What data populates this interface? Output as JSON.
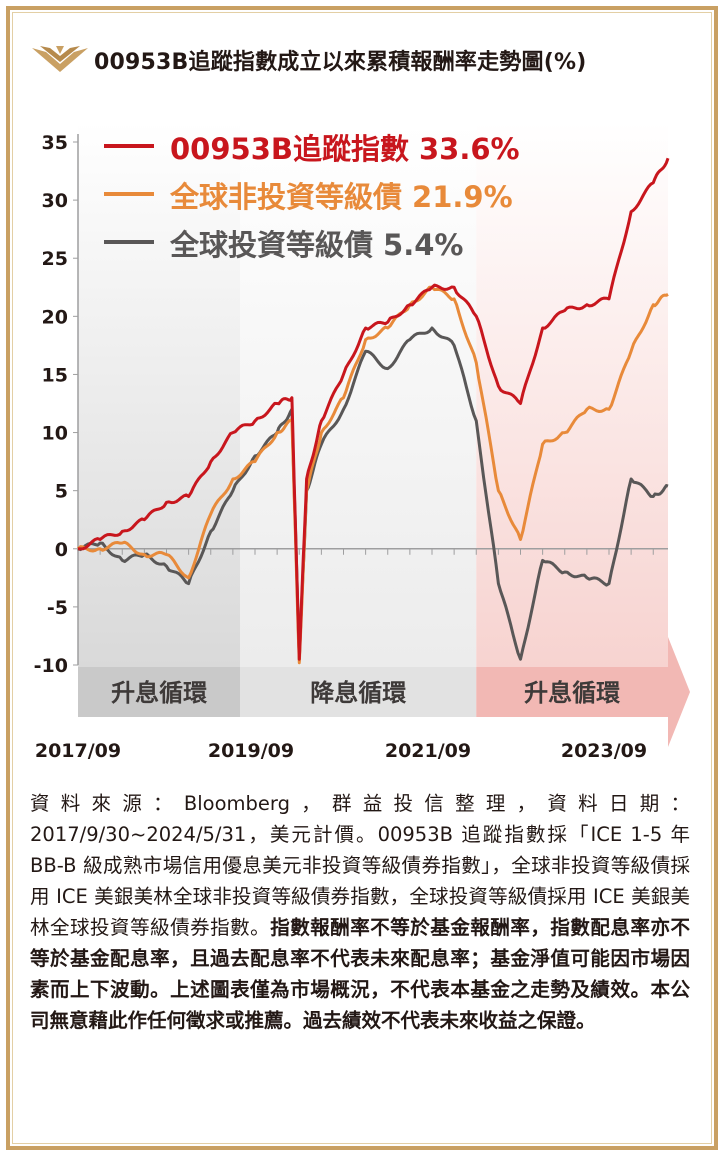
{
  "title": "00953B追蹤指數成立以來累積報酬率走勢圖(%)",
  "colors": {
    "series1": "#c8161d",
    "series2": "#e88a3a",
    "series3": "#595757",
    "gold": "#c9a063"
  },
  "chart_data": {
    "type": "line",
    "ylim": [
      -10,
      35
    ],
    "yticks": [
      "35",
      "30",
      "25",
      "20",
      "15",
      "10",
      "5",
      "0",
      "-5",
      "-10"
    ],
    "xticks": [
      "2017/09",
      "2019/09",
      "2021/09",
      "2023/09"
    ],
    "phases": [
      {
        "label": "升息循環",
        "start": "2017/09",
        "end": "2019/07"
      },
      {
        "label": "降息循環",
        "start": "2019/07",
        "end": "2022/03"
      },
      {
        "label": "升息循環",
        "start": "2022/03",
        "end": "2024/05"
      }
    ],
    "x": [
      "2017/09",
      "2017/12",
      "2018/03",
      "2018/06",
      "2018/09",
      "2018/12",
      "2019/03",
      "2019/06",
      "2019/09",
      "2019/12",
      "2020/02",
      "2020/03",
      "2020/04",
      "2020/06",
      "2020/09",
      "2020/12",
      "2021/03",
      "2021/06",
      "2021/09",
      "2021/12",
      "2022/03",
      "2022/06",
      "2022/09",
      "2022/12",
      "2023/03",
      "2023/06",
      "2023/09",
      "2023/12",
      "2024/03",
      "2024/05"
    ],
    "series": [
      {
        "name": "00953B追蹤指數",
        "last": "33.6%",
        "values": [
          0,
          0.8,
          1.5,
          2.5,
          4,
          4.5,
          7.5,
          10,
          11,
          12.5,
          13,
          -9.5,
          6,
          11,
          15,
          19,
          19.5,
          21,
          22.5,
          22.5,
          20,
          14,
          12.5,
          19,
          20.5,
          21,
          21.5,
          29,
          31.5,
          33.6
        ]
      },
      {
        "name": "全球非投資等級債",
        "last": "21.9%",
        "values": [
          0,
          0,
          0.5,
          -0.5,
          -0.5,
          -2.5,
          3,
          6,
          7.5,
          10,
          11,
          -9.8,
          5,
          10,
          13,
          18,
          19,
          21,
          22.5,
          21.5,
          16,
          5,
          0.8,
          9,
          10,
          12,
          12,
          17,
          21,
          21.9
        ]
      },
      {
        "name": "全球投資等級債",
        "last": "5.4%",
        "values": [
          0,
          0.5,
          -1,
          -0.5,
          -1.5,
          -3,
          1.5,
          5,
          8,
          10,
          12,
          -9.5,
          5,
          9,
          12,
          17,
          15.5,
          18,
          19,
          17.5,
          11,
          -3,
          -9.5,
          -1,
          -2,
          -2.5,
          -3,
          6,
          4.5,
          5.4
        ]
      }
    ]
  },
  "footer": {
    "p1": "資料來源：Bloomberg，群益投信整理，資料日期：2017/9/30~2024/5/31，美元計價。00953B 追蹤指數採「ICE 1-5 年 BB-B 級成熟市場信用優息美元非投資等級債券指數」，全球非投資等級債採用 ICE 美銀美林全球非投資等級債券指數，全球投資等級債採用 ICE 美銀美林全球投資等級債券指數。",
    "p2": "指數報酬率不等於基金報酬率，指數配息率亦不等於基金配息率，且過去配息率不代表未來配息率；基金淨值可能因市場因素而上下波動。上述圖表僅為市場概況，不代表本基金之走勢及績效。本公司無意藉此作任何徵求或推薦。過去績效不代表未來收益之保證。"
  }
}
